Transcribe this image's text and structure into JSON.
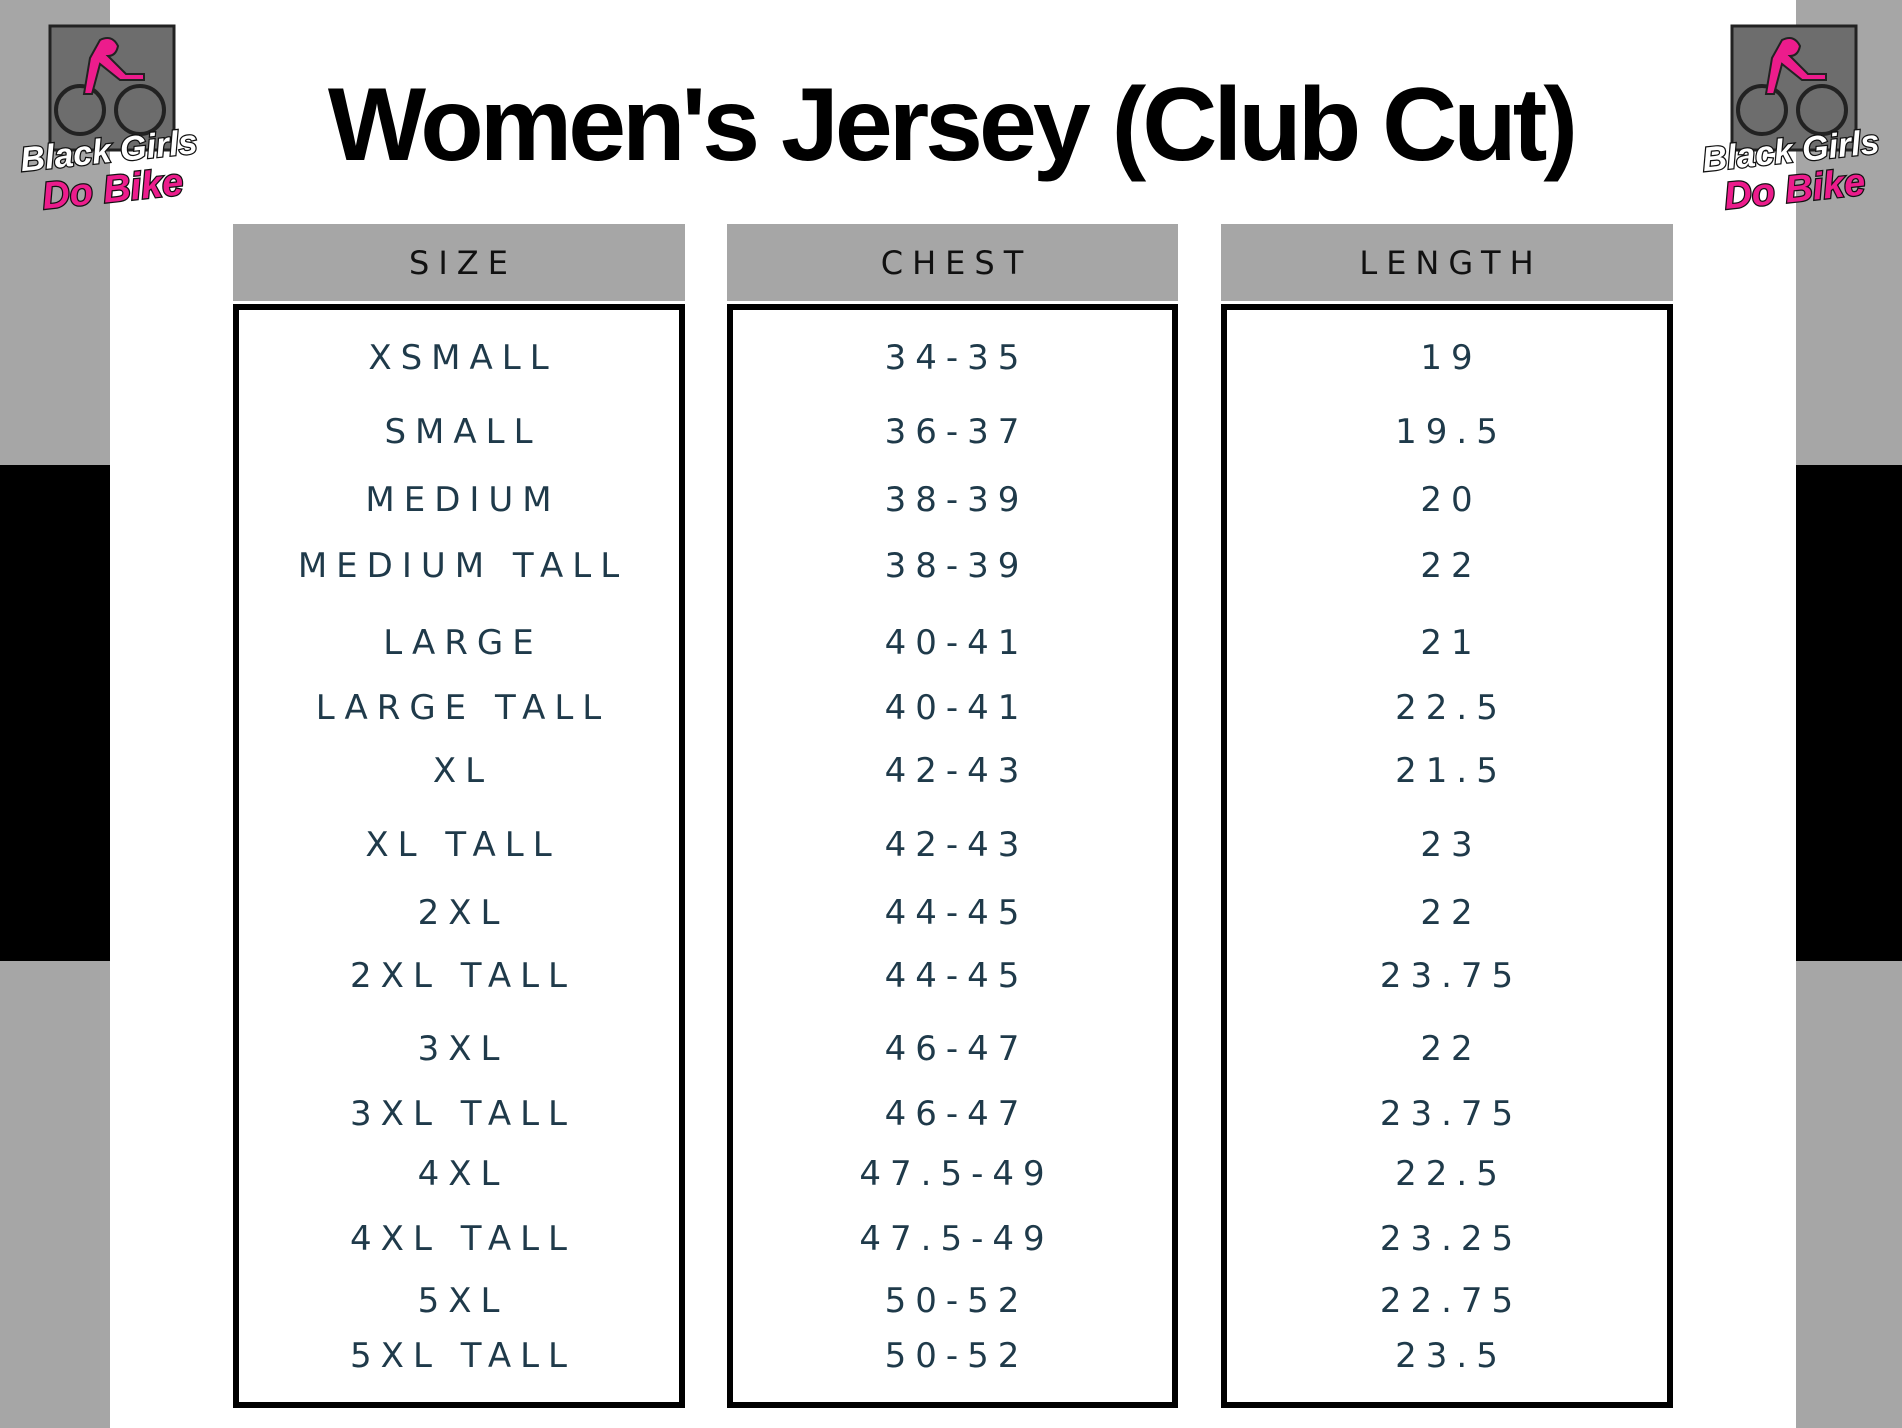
{
  "header": {
    "title": "Women's Jersey (Club Cut)"
  },
  "logos": [
    {
      "line1": "Black Girls",
      "line2": "Do Bike"
    },
    {
      "line1": "Black Girls",
      "line2": "Do Bike"
    }
  ],
  "table": {
    "columns": [
      "SIZE",
      "CHEST",
      "LENGTH"
    ],
    "rows": [
      [
        "XSMALL",
        "34-35",
        "19"
      ],
      [
        "SMALL",
        "36-37",
        "19.5"
      ],
      [
        "MEDIUM",
        "38-39",
        "20"
      ],
      [
        "MEDIUM TALL",
        "38-39",
        "22"
      ],
      [
        "LARGE",
        "40-41",
        "21"
      ],
      [
        "LARGE TALL",
        "40-41",
        "22.5"
      ],
      [
        "XL",
        "42-43",
        "21.5"
      ],
      [
        "XL TALL",
        "42-43",
        "23"
      ],
      [
        "2XL",
        "44-45",
        "22"
      ],
      [
        "2XL TALL",
        "44-45",
        "23.75"
      ],
      [
        "3XL",
        "46-47",
        "22"
      ],
      [
        "3XL TALL",
        "46-47",
        "23.75"
      ],
      [
        "4XL",
        "47.5-49",
        "22.5"
      ],
      [
        "4XL TALL",
        "47.5-49",
        "23.25"
      ],
      [
        "5XL",
        "50-52",
        "22.75"
      ],
      [
        "5XL TALL",
        "50-52",
        "23.5"
      ]
    ]
  }
}
